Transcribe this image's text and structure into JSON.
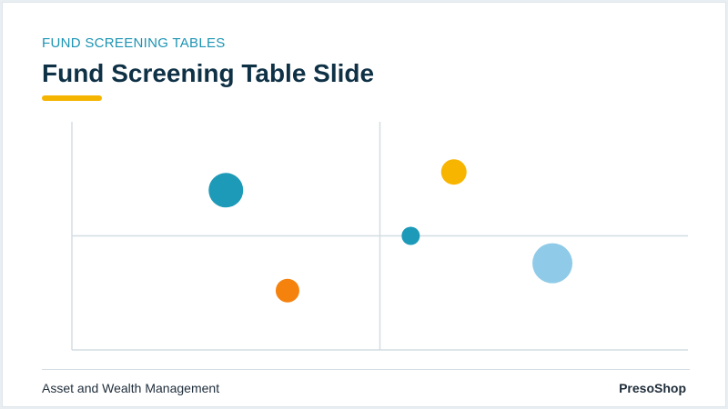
{
  "slide": {
    "kicker": "FUND SCREENING TABLES",
    "title": "Fund Screening Table Slide",
    "footer_left": "Asset and Wealth Management",
    "footer_right": "PresoShop"
  },
  "colors": {
    "kicker": "#1c94b3",
    "title": "#0f3146",
    "accent": "#f4b400",
    "axis": "#d3dde3",
    "bubble_teal": "#1c9ab8",
    "bubble_orange": "#f5820d",
    "bubble_yellow": "#f8b500",
    "bubble_light_blue": "#8fcbe8"
  },
  "chart_data": {
    "type": "scatter",
    "title": "",
    "xlabel": "",
    "ylabel": "",
    "xlim": [
      0,
      100
    ],
    "ylim": [
      0,
      100
    ],
    "grid": false,
    "quadrant_dividers": {
      "x": 50,
      "y": 50
    },
    "points": [
      {
        "x": 25,
        "y": 70,
        "size": 19,
        "color": "#1c9ab8"
      },
      {
        "x": 35,
        "y": 26,
        "size": 13,
        "color": "#f5820d"
      },
      {
        "x": 62,
        "y": 78,
        "size": 14,
        "color": "#f8b500"
      },
      {
        "x": 55,
        "y": 50,
        "size": 10,
        "color": "#1c9ab8"
      },
      {
        "x": 78,
        "y": 38,
        "size": 22,
        "color": "#8fcbe8"
      }
    ]
  }
}
